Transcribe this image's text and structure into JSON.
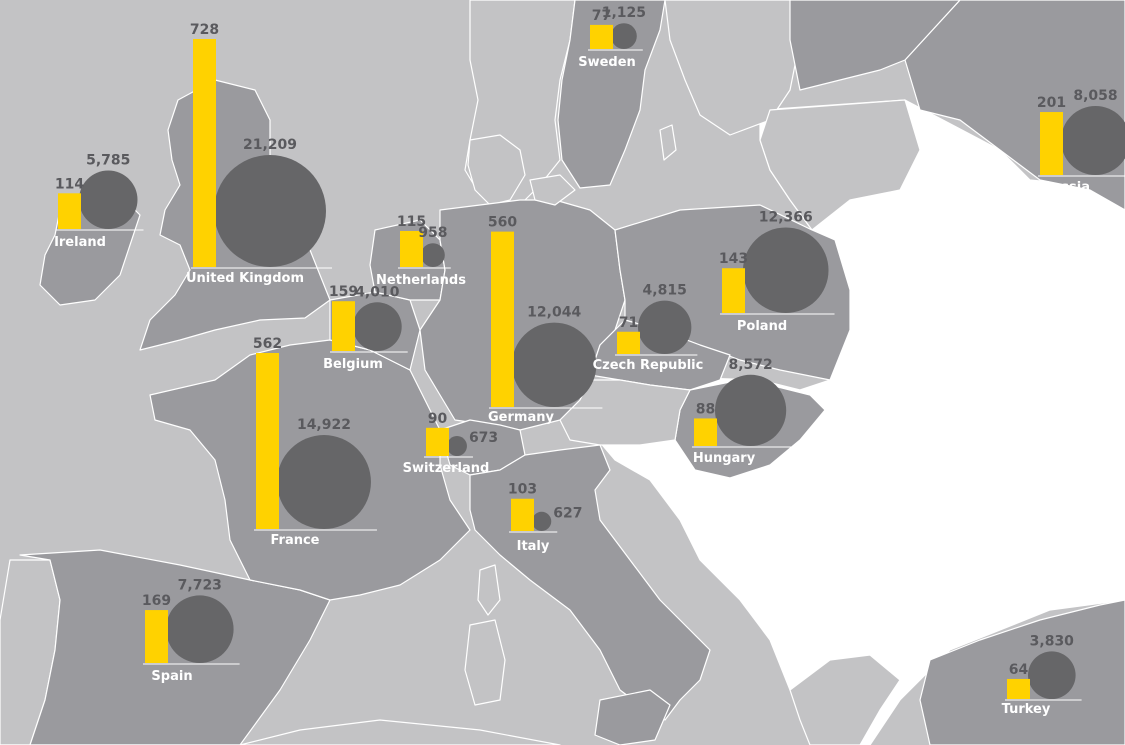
{
  "colors": {
    "sea": "#c3c3c5",
    "land_dark": "#9a9a9e",
    "land_light": "#ffffff",
    "border": "#ffffff",
    "bar": "#ffd200",
    "bubble": "#666668",
    "value_text": "#5a5a5e",
    "label_text": "#ffffff"
  },
  "map_data": {
    "legend": {
      "bar": "yellow bar (first value)",
      "bubble": "grey circle (second value)"
    },
    "countries": [
      {
        "id": "united-kingdom",
        "name": "United Kingdom",
        "bar_value": "728",
        "bubble_value": "21,209",
        "bar": 728,
        "bubble": 21209
      },
      {
        "id": "ireland",
        "name": "Ireland",
        "bar_value": "114",
        "bubble_value": "5,785",
        "bar": 114,
        "bubble": 5785
      },
      {
        "id": "france",
        "name": "France",
        "bar_value": "562",
        "bubble_value": "14,922",
        "bar": 562,
        "bubble": 14922
      },
      {
        "id": "germany",
        "name": "Germany",
        "bar_value": "560",
        "bubble_value": "12,044",
        "bar": 560,
        "bubble": 12044
      },
      {
        "id": "sweden",
        "name": "Sweden",
        "bar_value": "77",
        "bubble_value": "1,125",
        "bar": 77,
        "bubble": 1125
      },
      {
        "id": "russia",
        "name": "Russia",
        "bar_value": "201",
        "bubble_value": "8,058",
        "bar": 201,
        "bubble": 8058
      },
      {
        "id": "netherlands",
        "name": "Netherlands",
        "bar_value": "115",
        "bubble_value": "958",
        "bar": 115,
        "bubble": 958
      },
      {
        "id": "belgium",
        "name": "Belgium",
        "bar_value": "159",
        "bubble_value": "4,010",
        "bar": 159,
        "bubble": 4010
      },
      {
        "id": "poland",
        "name": "Poland",
        "bar_value": "143",
        "bubble_value": "12,366",
        "bar": 143,
        "bubble": 12366
      },
      {
        "id": "czech-republic",
        "name": "Czech Republic",
        "bar_value": "71",
        "bubble_value": "4,815",
        "bar": 71,
        "bubble": 4815
      },
      {
        "id": "hungary",
        "name": "Hungary",
        "bar_value": "88",
        "bubble_value": "8,572",
        "bar": 88,
        "bubble": 8572
      },
      {
        "id": "switzerland",
        "name": "Switzerland",
        "bar_value": "90",
        "bubble_value": "673",
        "bar": 90,
        "bubble": 673
      },
      {
        "id": "italy",
        "name": "Italy",
        "bar_value": "103",
        "bubble_value": "627",
        "bar": 103,
        "bubble": 627
      },
      {
        "id": "spain",
        "name": "Spain",
        "bar_value": "169",
        "bubble_value": "7,723",
        "bar": 169,
        "bubble": 7723
      },
      {
        "id": "turkey",
        "name": "Turkey",
        "bar_value": "64",
        "bubble_value": "3,830",
        "bar": 64,
        "bubble": 3830
      }
    ]
  }
}
